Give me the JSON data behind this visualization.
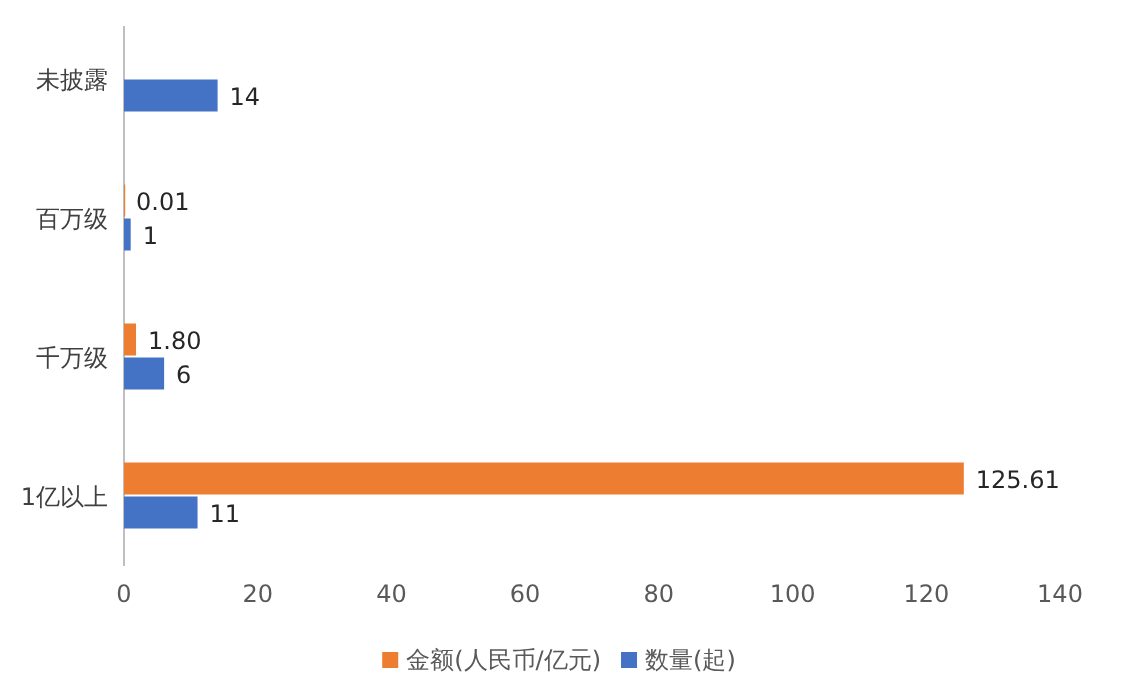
{
  "chart_data": {
    "type": "bar",
    "orientation": "horizontal",
    "categories": [
      "未披露",
      "百万级",
      "千万级",
      "1亿以上"
    ],
    "series": [
      {
        "name": "金额(人民币/亿元)",
        "color": "#ed7d31",
        "values": [
          null,
          0.01,
          1.8,
          125.61
        ],
        "value_labels": [
          null,
          "0.01",
          "1.80",
          "125.61"
        ]
      },
      {
        "name": "数量(起)",
        "color": "#4472c4",
        "values": [
          14,
          1,
          6,
          11
        ],
        "value_labels": [
          "14",
          "1",
          "6",
          "11"
        ]
      }
    ],
    "xlim": [
      0,
      140
    ],
    "xticks": [
      0,
      20,
      40,
      60,
      80,
      100,
      120,
      140
    ],
    "grid": false,
    "legend": "bottom"
  }
}
